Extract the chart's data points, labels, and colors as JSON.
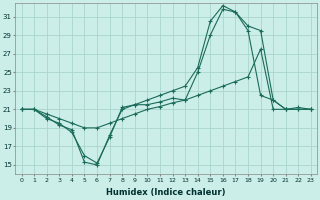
{
  "xlabel": "Humidex (Indice chaleur)",
  "ylabel": "",
  "xlim": [
    -0.5,
    23.5
  ],
  "ylim": [
    14,
    32.5
  ],
  "yticks": [
    15,
    17,
    19,
    21,
    23,
    25,
    27,
    29,
    31
  ],
  "xticks": [
    0,
    1,
    2,
    3,
    4,
    5,
    6,
    7,
    8,
    9,
    10,
    11,
    12,
    13,
    14,
    15,
    16,
    17,
    18,
    19,
    20,
    21,
    22,
    23
  ],
  "background_color": "#cceee8",
  "grid_color": "#aad4cc",
  "line_color": "#1a6b5a",
  "line1_x": [
    0,
    1,
    2,
    3,
    4,
    5,
    6,
    7,
    8,
    9,
    10,
    11,
    12,
    13,
    14,
    15,
    16,
    17,
    18,
    19,
    20,
    21,
    22,
    23
  ],
  "line1_y": [
    21,
    21,
    20,
    19.5,
    18.5,
    16,
    15.2,
    18,
    21.2,
    21.5,
    22,
    22.5,
    23,
    23.5,
    25.5,
    30.5,
    32.2,
    31.5,
    29.5,
    22.5,
    22,
    21,
    21.2,
    21
  ],
  "line2_x": [
    0,
    1,
    2,
    3,
    4,
    5,
    6,
    7,
    8,
    9,
    10,
    11,
    12,
    13,
    14,
    15,
    16,
    17,
    18,
    19,
    20,
    21,
    22,
    23
  ],
  "line2_y": [
    21,
    21,
    20.2,
    19.3,
    18.8,
    15.3,
    15.0,
    18.2,
    21,
    21.5,
    21.5,
    21.8,
    22.2,
    22,
    25,
    29,
    31.8,
    31.5,
    30,
    29.5,
    22,
    21,
    21,
    21
  ],
  "line3_x": [
    0,
    1,
    2,
    3,
    4,
    5,
    6,
    7,
    8,
    9,
    10,
    11,
    12,
    13,
    14,
    15,
    16,
    17,
    18,
    19,
    20,
    21,
    22,
    23
  ],
  "line3_y": [
    21,
    21,
    20.5,
    20,
    19.5,
    19,
    19,
    19.5,
    20,
    20.5,
    21,
    21.3,
    21.7,
    22,
    22.5,
    23,
    23.5,
    24,
    24.5,
    27.5,
    21,
    21,
    21,
    21
  ]
}
